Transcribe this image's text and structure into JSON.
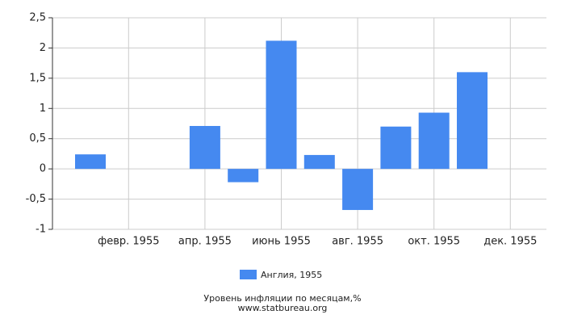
{
  "chart_data": {
    "type": "bar",
    "categories": [
      null,
      "февр. 1955",
      null,
      "апр. 1955",
      null,
      "июнь 1955",
      null,
      "авг. 1955",
      null,
      "окт. 1955",
      null,
      "дек. 1955"
    ],
    "series": [
      {
        "name": "Англия, 1955",
        "color": "#4589f0",
        "values": [
          0.24,
          0,
          0,
          0.71,
          -0.22,
          2.12,
          0.23,
          -0.68,
          0.7,
          0.93,
          1.6,
          0
        ]
      }
    ],
    "ylim": [
      -1,
      2.5
    ],
    "yticks": [
      -1,
      {
        "value": -0.5,
        "label": "-0,5"
      },
      0,
      {
        "value": 0.5,
        "label": "0,5"
      },
      1,
      {
        "value": 1.5,
        "label": "1,5"
      },
      2,
      {
        "value": 2.5,
        "label": "2,5"
      }
    ],
    "grid": true,
    "legend": "bottom",
    "title": "Уровень инфляции по месяцам,%",
    "subtitle": "www.statbureau.org"
  }
}
